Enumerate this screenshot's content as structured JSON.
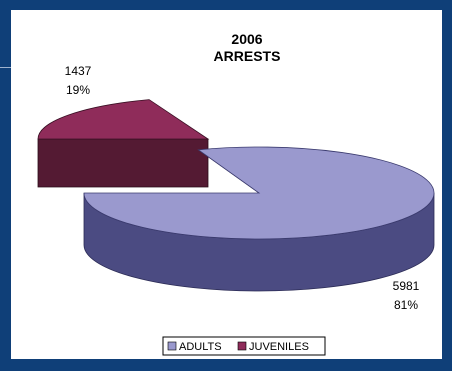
{
  "chart_data": {
    "type": "pie",
    "three_d": true,
    "title_line1": "2006",
    "title_line2": "ARRESTS",
    "slices": [
      {
        "name": "ADULTS",
        "value": 5981,
        "percent": "81%",
        "color": "#9a99ce",
        "side_color": "#4b4b82"
      },
      {
        "name": "JUVENILES",
        "value": 1437,
        "percent": "19%",
        "color": "#8f2c5a",
        "side_color": "#541a33"
      }
    ],
    "legend_position": "bottom"
  }
}
